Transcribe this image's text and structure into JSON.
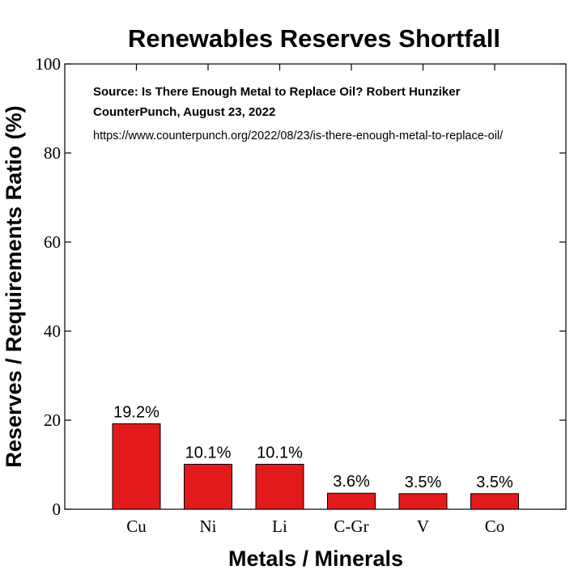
{
  "chart_data": {
    "type": "bar",
    "title": "Renewables Reserves Shortfall",
    "xlabel": "Metals / Minerals",
    "ylabel": "Reserves / Requirements Ratio (%)",
    "categories": [
      "Cu",
      "Ni",
      "Li",
      "C-Gr",
      "V",
      "Co"
    ],
    "values": [
      19.2,
      10.1,
      10.1,
      3.6,
      3.5,
      3.5
    ],
    "data_labels": [
      "19.2%",
      "10.1%",
      "10.1%",
      "3.6%",
      "3.5%",
      "3.5%"
    ],
    "ylim": [
      0,
      100
    ],
    "yticks": [
      0,
      20,
      40,
      60,
      80,
      100
    ],
    "grid": false,
    "bar_color": "#e31a1c",
    "annotations": [
      "Source: Is There Enough Metal to Replace Oil? Robert Hunziker",
      "CounterPunch, August 23, 2022",
      "https://www.counterpunch.org/2022/08/23/is-there-enough-metal-to-replace-oil/"
    ]
  }
}
